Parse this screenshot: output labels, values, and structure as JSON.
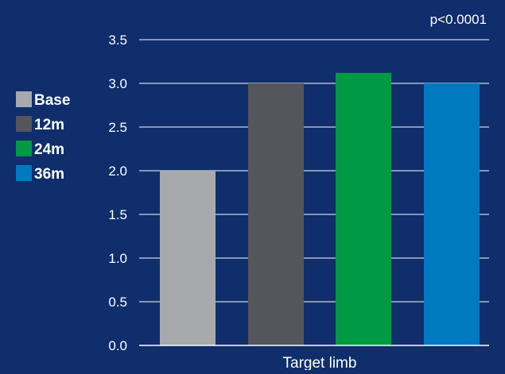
{
  "chart_data": {
    "type": "bar",
    "categories": [
      "Target limb"
    ],
    "series": [
      {
        "name": "Base",
        "values": [
          2.0
        ],
        "color": "#a7a9ac"
      },
      {
        "name": "12m",
        "values": [
          3.0
        ],
        "color": "#54565b"
      },
      {
        "name": "24m",
        "values": [
          3.12
        ],
        "color": "#009a44"
      },
      {
        "name": "36m",
        "values": [
          3.0
        ],
        "color": "#0079c1"
      }
    ],
    "annotation": "p<0.0001",
    "ylim": [
      0,
      3.5
    ],
    "yticks": [
      "0.0",
      "0.5",
      "1.0",
      "1.5",
      "2.0",
      "2.5",
      "3.0",
      "3.5"
    ],
    "grid": true,
    "legend_position": "left",
    "colors": {
      "background": "#0f2e6b",
      "text": "#ffffff",
      "grid": "#ffffff"
    }
  }
}
